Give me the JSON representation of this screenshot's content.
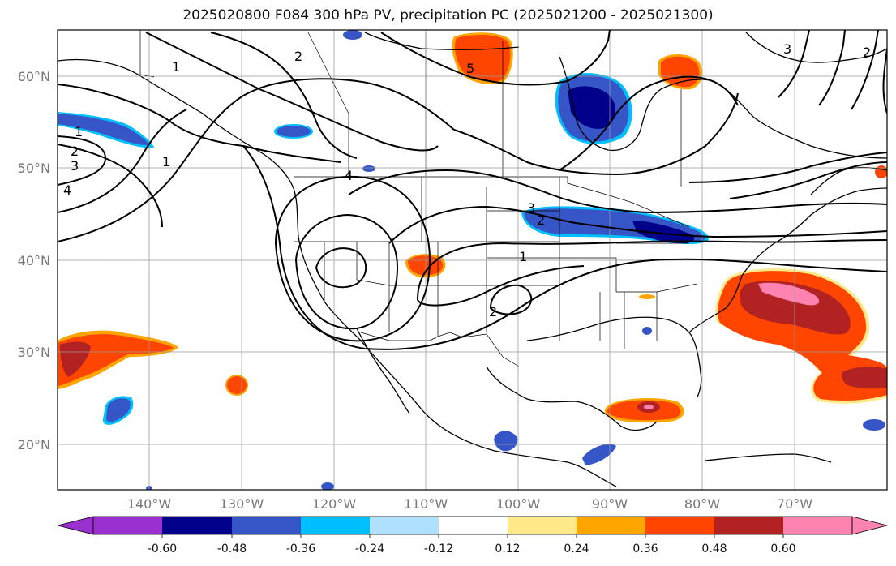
{
  "title": "2025020800 F084 300 hPa PV, precipitation PC (2025021200 - 2025021300)",
  "map": {
    "lat_ticks": [
      "60°N",
      "50°N",
      "40°N",
      "30°N",
      "20°N"
    ],
    "lon_ticks": [
      "140°W",
      "130°W",
      "120°W",
      "110°W",
      "100°W",
      "90°W",
      "80°W",
      "70°W"
    ],
    "contour_labels": [
      "1",
      "2",
      "3",
      "4",
      "5"
    ]
  },
  "colorbar": {
    "labels": [
      "-0.60",
      "-0.48",
      "-0.36",
      "-0.24",
      "-0.12",
      "0.12",
      "0.24",
      "0.36",
      "0.48",
      "0.60"
    ],
    "colors": [
      "#9b30d0",
      "#00008b",
      "#3656c8",
      "#00bfff",
      "#b0e0ff",
      "#ffffff",
      "#ffe989",
      "#ffa500",
      "#ff4500",
      "#b22222",
      "#ff83b0"
    ]
  }
}
